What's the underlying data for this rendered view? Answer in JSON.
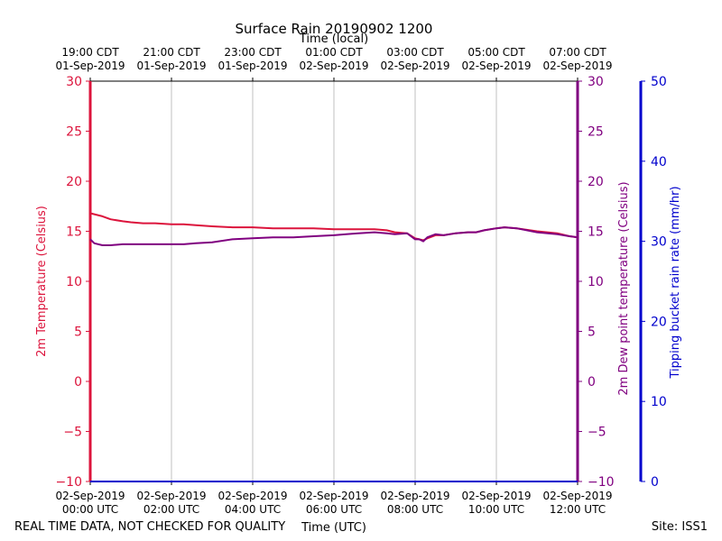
{
  "chart_data": {
    "type": "line",
    "title": "Surface Rain 20190902 1200",
    "top_axis_label": "Time (local)",
    "xlabel": "Time (UTC)",
    "x_unit": "hours since 02-Sep-2019 00:00 UTC",
    "xlim": [
      0,
      12
    ],
    "x_ticks": [
      0,
      2,
      4,
      6,
      8,
      10,
      12
    ],
    "x_tick_labels_utc": [
      [
        "02-Sep-2019",
        "00:00 UTC"
      ],
      [
        "02-Sep-2019",
        "02:00 UTC"
      ],
      [
        "02-Sep-2019",
        "04:00 UTC"
      ],
      [
        "02-Sep-2019",
        "06:00 UTC"
      ],
      [
        "02-Sep-2019",
        "08:00 UTC"
      ],
      [
        "02-Sep-2019",
        "10:00 UTC"
      ],
      [
        "02-Sep-2019",
        "12:00 UTC"
      ]
    ],
    "x_tick_labels_local": [
      [
        "19:00 CDT",
        "01-Sep-2019"
      ],
      [
        "21:00 CDT",
        "01-Sep-2019"
      ],
      [
        "23:00 CDT",
        "01-Sep-2019"
      ],
      [
        "01:00 CDT",
        "02-Sep-2019"
      ],
      [
        "03:00 CDT",
        "02-Sep-2019"
      ],
      [
        "05:00 CDT",
        "02-Sep-2019"
      ],
      [
        "07:00 CDT",
        "02-Sep-2019"
      ]
    ],
    "y_left": {
      "label": "2m Temperature (Celsius)",
      "range": [
        -10,
        30
      ],
      "ticks": [
        -10,
        -5,
        0,
        5,
        10,
        15,
        20,
        25,
        30
      ],
      "tick_labels": [
        "−10",
        "−5",
        "0",
        "5",
        "10",
        "15",
        "20",
        "25",
        "30"
      ],
      "color": "#dc143c"
    },
    "y_right1": {
      "label": "2m Dew point temperature (Celsius)",
      "range": [
        -10,
        30
      ],
      "ticks": [
        -10,
        -5,
        0,
        5,
        10,
        15,
        20,
        25,
        30
      ],
      "tick_labels": [
        "−10",
        "−5",
        "0",
        "5",
        "10",
        "15",
        "20",
        "25",
        "30"
      ],
      "color": "#800080"
    },
    "y_right2": {
      "label": "Tipping bucket rain rate (mm/hr)",
      "range": [
        0,
        50
      ],
      "ticks": [
        0,
        10,
        20,
        30,
        40,
        50
      ],
      "tick_labels": [
        "0",
        "10",
        "20",
        "30",
        "40",
        "50"
      ],
      "color": "#0000cd"
    },
    "grid": "vertical",
    "series": [
      {
        "name": "2m Temperature",
        "axis": "left",
        "color": "#dc143c",
        "x": [
          0,
          0.1,
          0.3,
          0.5,
          0.8,
          1.0,
          1.3,
          1.6,
          2.0,
          2.3,
          2.6,
          3.0,
          3.5,
          4.0,
          4.5,
          5.0,
          5.5,
          6.0,
          6.3,
          6.6,
          7.0,
          7.3,
          7.5,
          7.8,
          8.0,
          8.1,
          8.2,
          8.3,
          8.5,
          8.7,
          9.0,
          9.3,
          9.5,
          9.7,
          10.0,
          10.2,
          10.5,
          11.0,
          11.5,
          11.8,
          12.0
        ],
        "values": [
          16.8,
          16.7,
          16.5,
          16.2,
          16.0,
          15.9,
          15.8,
          15.8,
          15.7,
          15.7,
          15.6,
          15.5,
          15.4,
          15.4,
          15.3,
          15.3,
          15.3,
          15.2,
          15.2,
          15.2,
          15.2,
          15.1,
          14.9,
          14.8,
          14.3,
          14.2,
          14.1,
          14.3,
          14.6,
          14.6,
          14.8,
          14.9,
          14.9,
          15.1,
          15.3,
          15.4,
          15.3,
          15.0,
          14.8,
          14.5,
          14.4
        ]
      },
      {
        "name": "2m Dew point temperature",
        "axis": "right1",
        "color": "#800080",
        "x": [
          0,
          0.1,
          0.3,
          0.5,
          0.8,
          1.0,
          1.3,
          1.6,
          2.0,
          2.3,
          2.6,
          3.0,
          3.5,
          4.0,
          4.5,
          5.0,
          5.5,
          6.0,
          6.3,
          6.6,
          7.0,
          7.3,
          7.5,
          7.8,
          8.0,
          8.1,
          8.2,
          8.3,
          8.5,
          8.7,
          9.0,
          9.3,
          9.5,
          9.7,
          10.0,
          10.2,
          10.5,
          11.0,
          11.5,
          11.8,
          12.0
        ],
        "values": [
          14.2,
          13.8,
          13.6,
          13.6,
          13.7,
          13.7,
          13.7,
          13.7,
          13.7,
          13.7,
          13.8,
          13.9,
          14.2,
          14.3,
          14.4,
          14.4,
          14.5,
          14.6,
          14.7,
          14.8,
          14.9,
          14.8,
          14.7,
          14.8,
          14.2,
          14.2,
          14.0,
          14.4,
          14.7,
          14.6,
          14.8,
          14.9,
          14.9,
          15.1,
          15.3,
          15.4,
          15.3,
          14.9,
          14.7,
          14.5,
          14.4
        ]
      },
      {
        "name": "Tipping bucket rain rate",
        "axis": "right2",
        "color": "#0000cd",
        "x": [
          0,
          12
        ],
        "values": [
          0,
          0
        ]
      }
    ]
  },
  "footer": {
    "disclaimer": "REAL TIME DATA, NOT CHECKED FOR QUALITY",
    "site": "Site: ISS1"
  }
}
